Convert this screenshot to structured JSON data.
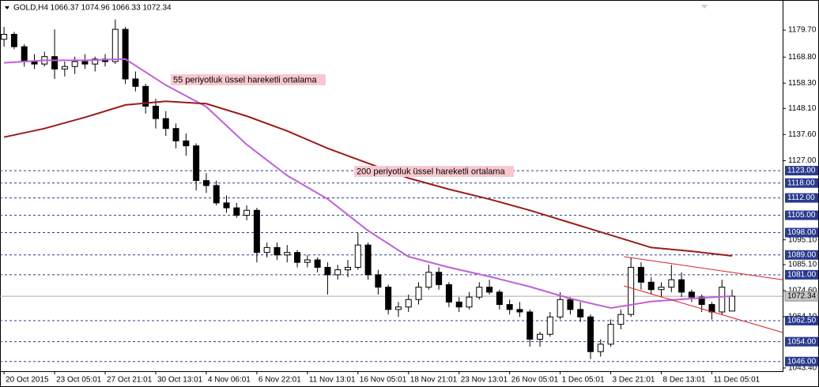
{
  "chart_data": {
    "type": "candlestick",
    "title": "GOLD,H4  1066.37 1074.96 1066.33 1072.34",
    "annotations": [
      "55 periyotluk üssel hareketli ortalama",
      "200 periyotluk üssel hareketli ortalama"
    ],
    "categories": [
      "20 Oct 2015",
      null,
      null,
      null,
      null,
      "23 Oct 05:01",
      null,
      null,
      null,
      null,
      "27 Oct 21:01",
      null,
      null,
      null,
      null,
      "30 Oct 13:01",
      null,
      null,
      null,
      null,
      "4 Nov 06:01",
      null,
      null,
      null,
      null,
      "6 Nov 22:01",
      null,
      null,
      null,
      null,
      "11 Nov 13:01",
      null,
      null,
      null,
      null,
      "16 Nov 05:01",
      null,
      null,
      null,
      null,
      "18 Nov 21:01",
      null,
      null,
      null,
      null,
      "23 Nov 13:01",
      null,
      null,
      null,
      null,
      "26 Nov 05:01",
      null,
      null,
      null,
      null,
      "1 Dec 05:01",
      null,
      null,
      null,
      null,
      "3 Dec 21:01",
      null,
      null,
      null,
      null,
      "8 Dec 13:01",
      null,
      null,
      null,
      null,
      "11 Dec 05:01",
      null,
      null
    ],
    "open": [
      1176,
      1178,
      1173,
      1167,
      1166,
      1169,
      1164,
      1165,
      1167,
      1166,
      1168,
      1167,
      1180,
      1160,
      1157,
      1149,
      1144,
      1140,
      1135,
      1133,
      1119,
      1117,
      1110,
      1108,
      1105,
      1107,
      1090,
      1092,
      1089,
      1090,
      1086,
      1087,
      1084,
      1081,
      1083,
      1084,
      1093,
      1081,
      1076,
      1067,
      1068,
      1071,
      1076,
      1082,
      1077,
      1070,
      1068,
      1072,
      1076,
      1074,
      1069,
      1067,
      1066,
      1055,
      1057,
      1064,
      1071,
      1067,
      1064,
      1050,
      1053,
      1061,
      1065,
      1084,
      1078,
      1075,
      1076,
      1079,
      1074,
      1072,
      1069,
      1066,
      1066.37
    ],
    "high": [
      1181,
      1179,
      1174,
      1170,
      1171,
      1180,
      1167,
      1169,
      1170,
      1169,
      1170,
      1184,
      1181,
      1163,
      1158,
      1152,
      1147,
      1142,
      1138,
      1134,
      1122,
      1119,
      1113,
      1110,
      1109,
      1108,
      1094,
      1094,
      1093,
      1091,
      1089,
      1088,
      1086,
      1085,
      1087,
      1098,
      1094,
      1083,
      1077,
      1070,
      1073,
      1078,
      1085,
      1084,
      1078,
      1072,
      1074,
      1078,
      1079,
      1075,
      1071,
      1070,
      1067,
      1058,
      1066,
      1074,
      1072,
      1070,
      1065,
      1055,
      1063,
      1067,
      1088,
      1086,
      1080,
      1078,
      1085,
      1082,
      1075,
      1073,
      1070,
      1079,
      1074.96
    ],
    "low": [
      1173,
      1172,
      1165,
      1164,
      1165,
      1160,
      1161,
      1162,
      1164,
      1163,
      1165,
      1166,
      1158,
      1155,
      1146,
      1140,
      1137,
      1132,
      1129,
      1115,
      1114,
      1109,
      1106,
      1104,
      1103,
      1086,
      1088,
      1087,
      1086,
      1084,
      1084,
      1082,
      1073,
      1079,
      1080,
      1083,
      1079,
      1073,
      1065,
      1064,
      1066,
      1069,
      1075,
      1075,
      1068,
      1066,
      1067,
      1071,
      1073,
      1067,
      1065,
      1064,
      1052,
      1052,
      1056,
      1063,
      1065,
      1062,
      1047,
      1048,
      1052,
      1059,
      1064,
      1075,
      1073,
      1072,
      1074,
      1072,
      1070,
      1066,
      1063,
      1065,
      1066.33
    ],
    "close": [
      1178,
      1173,
      1167,
      1166,
      1169,
      1164,
      1165,
      1167,
      1166,
      1168,
      1167,
      1180,
      1160,
      1157,
      1149,
      1144,
      1140,
      1135,
      1133,
      1119,
      1117,
      1110,
      1108,
      1105,
      1107,
      1090,
      1092,
      1089,
      1090,
      1086,
      1087,
      1084,
      1081,
      1083,
      1084,
      1093,
      1081,
      1076,
      1067,
      1068,
      1071,
      1076,
      1082,
      1077,
      1070,
      1068,
      1072,
      1076,
      1074,
      1069,
      1067,
      1066,
      1055,
      1057,
      1064,
      1071,
      1067,
      1064,
      1050,
      1053,
      1061,
      1065,
      1084,
      1078,
      1075,
      1076,
      1079,
      1074,
      1072,
      1069,
      1066,
      1076,
      1072.34
    ],
    "up_color": "#ffffff",
    "down_color": "#000000",
    "lines": [
      {
        "color": "#c060d8",
        "x": [
          0,
          4,
          8,
          12,
          16,
          20,
          24,
          28,
          32,
          36,
          40,
          44,
          48,
          52,
          56,
          60,
          64,
          68,
          72
        ],
        "values": [
          1166.5,
          1167.5,
          1167.5,
          1168,
          1157.5,
          1148.8,
          1133.5,
          1121,
          1111.6,
          1098.8,
          1088.3,
          1084,
          1080.3,
          1076.2,
          1071.4,
          1067.6,
          1070.2,
          1071.4,
          1072.4
        ]
      },
      {
        "color": "#9b1c1c",
        "x": [
          0,
          4,
          8,
          12,
          16,
          20,
          24,
          28,
          32,
          36,
          40,
          44,
          48,
          52,
          56,
          60,
          64,
          68,
          72
        ],
        "values": [
          1136.5,
          1140,
          1144.5,
          1149.5,
          1151,
          1150,
          1145,
          1139,
          1132,
          1126,
          1120,
          1115.5,
          1111.5,
          1107,
          1102,
          1097,
          1092,
          1090.5,
          1088.6
        ]
      },
      {
        "color": "#e02020",
        "x": [
          61.3,
          77
        ],
        "values": [
          1088.3,
          1079
        ]
      },
      {
        "color": "#e02020",
        "x": [
          61.3,
          77
        ],
        "values": [
          1076.5,
          1057.7
        ]
      }
    ],
    "levels": [
      {
        "value": 1123,
        "label": "1123.00"
      },
      {
        "value": 1118,
        "label": "1118.00"
      },
      {
        "value": 1112,
        "label": "1112.00"
      },
      {
        "value": 1105,
        "label": "1105.00"
      },
      {
        "value": 1098,
        "label": "1098.00"
      },
      {
        "value": 1089,
        "label": "1089.00"
      },
      {
        "value": 1081,
        "label": "1081.00"
      },
      {
        "value": 1062.5,
        "label": "1062.50"
      },
      {
        "value": 1054,
        "label": "1054.00"
      },
      {
        "value": 1046,
        "label": "1046.00"
      }
    ],
    "level_color": "#2a3a8f",
    "xlim": [
      -0.4,
      77
    ],
    "ylim": [
      1042.1,
      1191.2
    ],
    "yticks": [
      {
        "value": 1179.7,
        "label": "1179.70"
      },
      {
        "value": 1168.8,
        "label": "1168.80"
      },
      {
        "value": 1158.3,
        "label": "1158.30"
      },
      {
        "value": 1148.1,
        "label": "1148.10"
      },
      {
        "value": 1137.6,
        "label": "1137.60"
      },
      {
        "value": 1127,
        "label": "1127.00"
      },
      {
        "value": 1095.1,
        "label": "1095.10"
      },
      {
        "value": 1085.1,
        "label": "1085.10"
      },
      {
        "value": 1074.6,
        "label": "1074.60"
      },
      {
        "value": 1064.1,
        "label": "1064.10"
      },
      {
        "value": 1043.4,
        "label": "1043.40"
      }
    ],
    "grid": false
  }
}
